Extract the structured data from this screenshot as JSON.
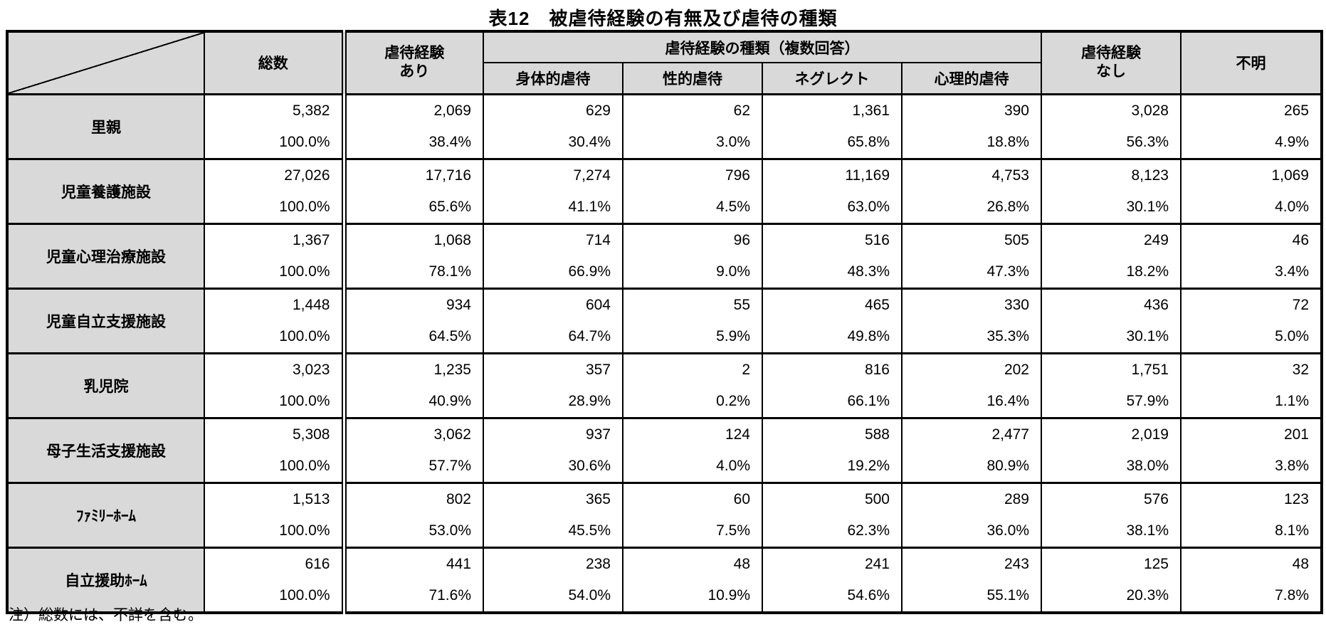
{
  "title": "表12　被虐待経験の有無及び虐待の種類",
  "note": "注）総数には、不詳を含む。",
  "colors": {
    "header_bg": "#d9d9d9",
    "border": "#000000",
    "cell_bg": "#ffffff"
  },
  "table": {
    "col_headers": {
      "total": "総数",
      "abuse_yes": "虐待経験\nあり",
      "types_group": "虐待経験の種類（複数回答）",
      "types": [
        "身体的虐待",
        "性的虐待",
        "ネグレクト",
        "心理的虐待"
      ],
      "abuse_no": "虐待経験\nなし",
      "unknown": "不明"
    },
    "rows": [
      {
        "label": "里親",
        "cells": [
          [
            "5,382",
            "100.0%"
          ],
          [
            "2,069",
            "38.4%"
          ],
          [
            "629",
            "30.4%"
          ],
          [
            "62",
            "3.0%"
          ],
          [
            "1,361",
            "65.8%"
          ],
          [
            "390",
            "18.8%"
          ],
          [
            "3,028",
            "56.3%"
          ],
          [
            "265",
            "4.9%"
          ]
        ]
      },
      {
        "label": "児童養護施設",
        "cells": [
          [
            "27,026",
            "100.0%"
          ],
          [
            "17,716",
            "65.6%"
          ],
          [
            "7,274",
            "41.1%"
          ],
          [
            "796",
            "4.5%"
          ],
          [
            "11,169",
            "63.0%"
          ],
          [
            "4,753",
            "26.8%"
          ],
          [
            "8,123",
            "30.1%"
          ],
          [
            "1,069",
            "4.0%"
          ]
        ]
      },
      {
        "label": "児童心理治療施設",
        "cells": [
          [
            "1,367",
            "100.0%"
          ],
          [
            "1,068",
            "78.1%"
          ],
          [
            "714",
            "66.9%"
          ],
          [
            "96",
            "9.0%"
          ],
          [
            "516",
            "48.3%"
          ],
          [
            "505",
            "47.3%"
          ],
          [
            "249",
            "18.2%"
          ],
          [
            "46",
            "3.4%"
          ]
        ]
      },
      {
        "label": "児童自立支援施設",
        "cells": [
          [
            "1,448",
            "100.0%"
          ],
          [
            "934",
            "64.5%"
          ],
          [
            "604",
            "64.7%"
          ],
          [
            "55",
            "5.9%"
          ],
          [
            "465",
            "49.8%"
          ],
          [
            "330",
            "35.3%"
          ],
          [
            "436",
            "30.1%"
          ],
          [
            "72",
            "5.0%"
          ]
        ]
      },
      {
        "label": "乳児院",
        "cells": [
          [
            "3,023",
            "100.0%"
          ],
          [
            "1,235",
            "40.9%"
          ],
          [
            "357",
            "28.9%"
          ],
          [
            "2",
            "0.2%"
          ],
          [
            "816",
            "66.1%"
          ],
          [
            "202",
            "16.4%"
          ],
          [
            "1,751",
            "57.9%"
          ],
          [
            "32",
            "1.1%"
          ]
        ]
      },
      {
        "label": "母子生活支援施設",
        "cells": [
          [
            "5,308",
            "100.0%"
          ],
          [
            "3,062",
            "57.7%"
          ],
          [
            "937",
            "30.6%"
          ],
          [
            "124",
            "4.0%"
          ],
          [
            "588",
            "19.2%"
          ],
          [
            "2,477",
            "80.9%"
          ],
          [
            "2,019",
            "38.0%"
          ],
          [
            "201",
            "3.8%"
          ]
        ]
      },
      {
        "label": "ﾌｧﾐﾘｰﾎｰﾑ",
        "cells": [
          [
            "1,513",
            "100.0%"
          ],
          [
            "802",
            "53.0%"
          ],
          [
            "365",
            "45.5%"
          ],
          [
            "60",
            "7.5%"
          ],
          [
            "500",
            "62.3%"
          ],
          [
            "289",
            "36.0%"
          ],
          [
            "576",
            "38.1%"
          ],
          [
            "123",
            "8.1%"
          ]
        ]
      },
      {
        "label": "自立援助ﾎｰﾑ",
        "cells": [
          [
            "616",
            "100.0%"
          ],
          [
            "441",
            "71.6%"
          ],
          [
            "238",
            "54.0%"
          ],
          [
            "48",
            "10.9%"
          ],
          [
            "241",
            "54.6%"
          ],
          [
            "243",
            "55.1%"
          ],
          [
            "125",
            "20.3%"
          ],
          [
            "48",
            "7.8%"
          ]
        ]
      }
    ]
  }
}
